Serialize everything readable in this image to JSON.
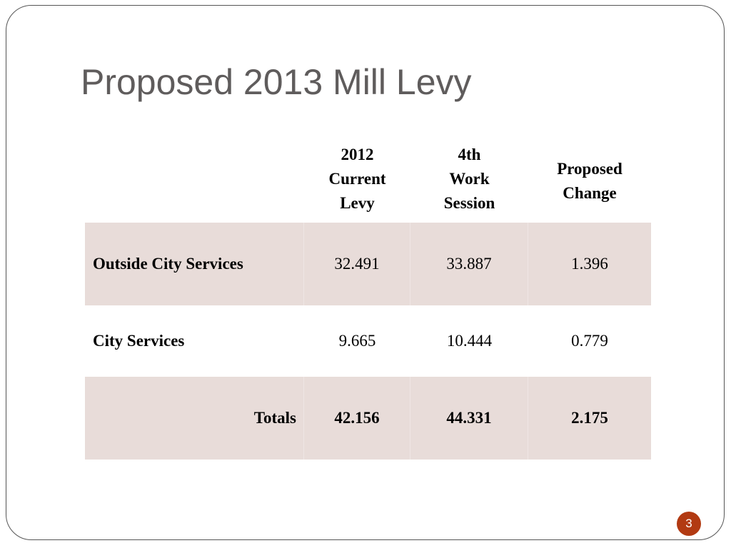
{
  "slide": {
    "title": "Proposed 2013 Mill Levy",
    "page_number": "3"
  },
  "table": {
    "headers": [
      "",
      [
        "2012",
        "Current",
        "Levy"
      ],
      [
        "4th",
        "Work",
        "Session"
      ],
      [
        "Proposed",
        "Change"
      ]
    ],
    "rows": [
      {
        "label": "Outside City Services",
        "current": "32.491",
        "work_session": "33.887",
        "change": "1.396"
      },
      {
        "label": "City Services",
        "current": "9.665",
        "work_session": "10.444",
        "change": "0.779"
      },
      {
        "label": "Totals",
        "current": "42.156",
        "work_session": "44.331",
        "change": "2.175"
      }
    ]
  },
  "colors": {
    "title": "#5f5c5c",
    "shaded_row": "#e8dcd9",
    "page_badge": "#b23a12"
  }
}
